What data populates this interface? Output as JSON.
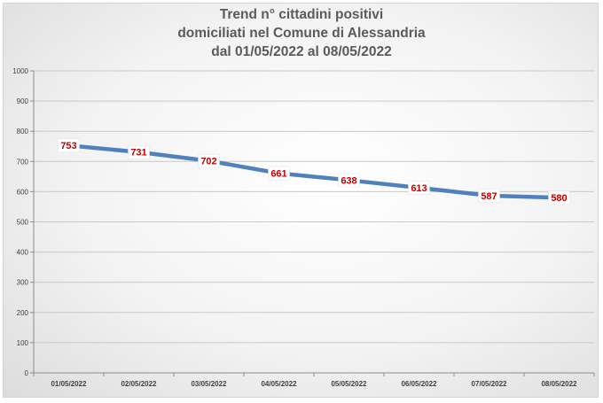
{
  "chart_data": {
    "type": "line",
    "title_lines": [
      "Trend n° cittadini positivi",
      "domiciliati nel Comune di Alessandria",
      "dal 01/05/2022 al 08/05/2022"
    ],
    "categories": [
      "01/05/2022",
      "02/05/2022",
      "03/05/2022",
      "04/05/2022",
      "05/05/2022",
      "06/05/2022",
      "07/05/2022",
      "08/05/2022"
    ],
    "values": [
      753,
      731,
      702,
      661,
      638,
      613,
      587,
      580
    ],
    "ylim": [
      0,
      1000
    ],
    "yticks": [
      "0",
      "100",
      "200",
      "300",
      "400",
      "500",
      "600",
      "700",
      "800",
      "900",
      "1000"
    ],
    "grid": true,
    "legend": "none",
    "line_color": "#4f81bd",
    "label_color": "#c00000"
  }
}
